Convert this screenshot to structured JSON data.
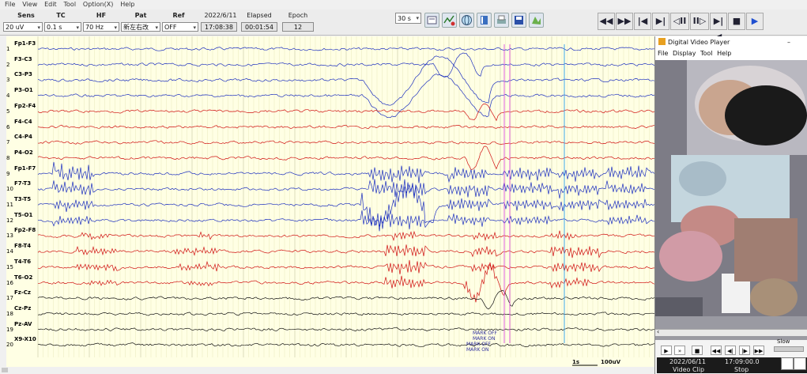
{
  "menu": [
    "File",
    "View",
    "Edit",
    "Tool",
    "Option(X)",
    "Help"
  ],
  "controls": {
    "sens": {
      "label": "Sens",
      "value": "20 uV"
    },
    "tc": {
      "label": "TC",
      "value": "0.1 s"
    },
    "hf": {
      "label": "HF",
      "value": "70 Hz"
    },
    "pat": {
      "label": "Pat",
      "value": "新左右改"
    },
    "ref": {
      "label": "Ref",
      "value": "OFF"
    },
    "date": "2022/6/11",
    "time": "17:08:38",
    "elapsed_label": "Elapsed",
    "elapsed": "00:01:54",
    "epoch_label": "Epoch",
    "epoch": "12",
    "page_span": "30 s"
  },
  "icons": [
    "montage-icon",
    "filter-icon",
    "globe-icon",
    "book-icon",
    "print-icon",
    "save-icon",
    "map-icon"
  ],
  "playback": [
    "◀◀",
    "▶▶",
    "|◀",
    "▶|",
    "◁II",
    "II▷",
    "▶|◀",
    "■",
    "▶"
  ],
  "channels": [
    {
      "num": "1",
      "label": "Fp1-F3",
      "color": "#1c2fbf"
    },
    {
      "num": "2",
      "label": "F3-C3",
      "color": "#1c2fbf"
    },
    {
      "num": "3",
      "label": "C3-P3",
      "color": "#1c2fbf"
    },
    {
      "num": "4",
      "label": "P3-O1",
      "color": "#1c2fbf"
    },
    {
      "num": "5",
      "label": "Fp2-F4",
      "color": "#d01010"
    },
    {
      "num": "6",
      "label": "F4-C4",
      "color": "#d01010"
    },
    {
      "num": "7",
      "label": "C4-P4",
      "color": "#d01010"
    },
    {
      "num": "8",
      "label": "P4-O2",
      "color": "#d01010"
    },
    {
      "num": "9",
      "label": "Fp1-F7",
      "color": "#1c2fbf"
    },
    {
      "num": "10",
      "label": "F7-T3",
      "color": "#1c2fbf"
    },
    {
      "num": "11",
      "label": "T3-T5",
      "color": "#1c2fbf"
    },
    {
      "num": "12",
      "label": "T5-O1",
      "color": "#1c2fbf"
    },
    {
      "num": "13",
      "label": "Fp2-F8",
      "color": "#d01010"
    },
    {
      "num": "14",
      "label": "F8-T4",
      "color": "#d01010"
    },
    {
      "num": "15",
      "label": "T4-T6",
      "color": "#d01010"
    },
    {
      "num": "16",
      "label": "T6-O2",
      "color": "#d01010"
    },
    {
      "num": "17",
      "label": "Fz-Cz",
      "color": "#111111"
    },
    {
      "num": "18",
      "label": "Cz-Pz",
      "color": "#111111"
    },
    {
      "num": "19",
      "label": "Pz-AV",
      "color": "#111111"
    },
    {
      "num": "20",
      "label": "X9-X10",
      "color": "#111111"
    }
  ],
  "marks": [
    "MARK OFF",
    "MARK ON",
    "MARK OFF",
    "MARK ON"
  ],
  "scale": {
    "time": "1s",
    "amp": "100uV"
  },
  "video": {
    "title": "Digital Video Player",
    "menu": [
      "File",
      "Display",
      "Tool",
      "Help"
    ],
    "date": "2022/06/11",
    "time": "17:09:00.0",
    "clip": "Video Clip",
    "state": "Stop",
    "speed": "Slow"
  },
  "colors": {
    "background": "#ffffe4",
    "left_hemisphere": "#1c2fbf",
    "right_hemisphere": "#d01010",
    "midline": "#111111",
    "mark_pink": "#e060e0",
    "mark_cyan": "#40a8e8"
  }
}
